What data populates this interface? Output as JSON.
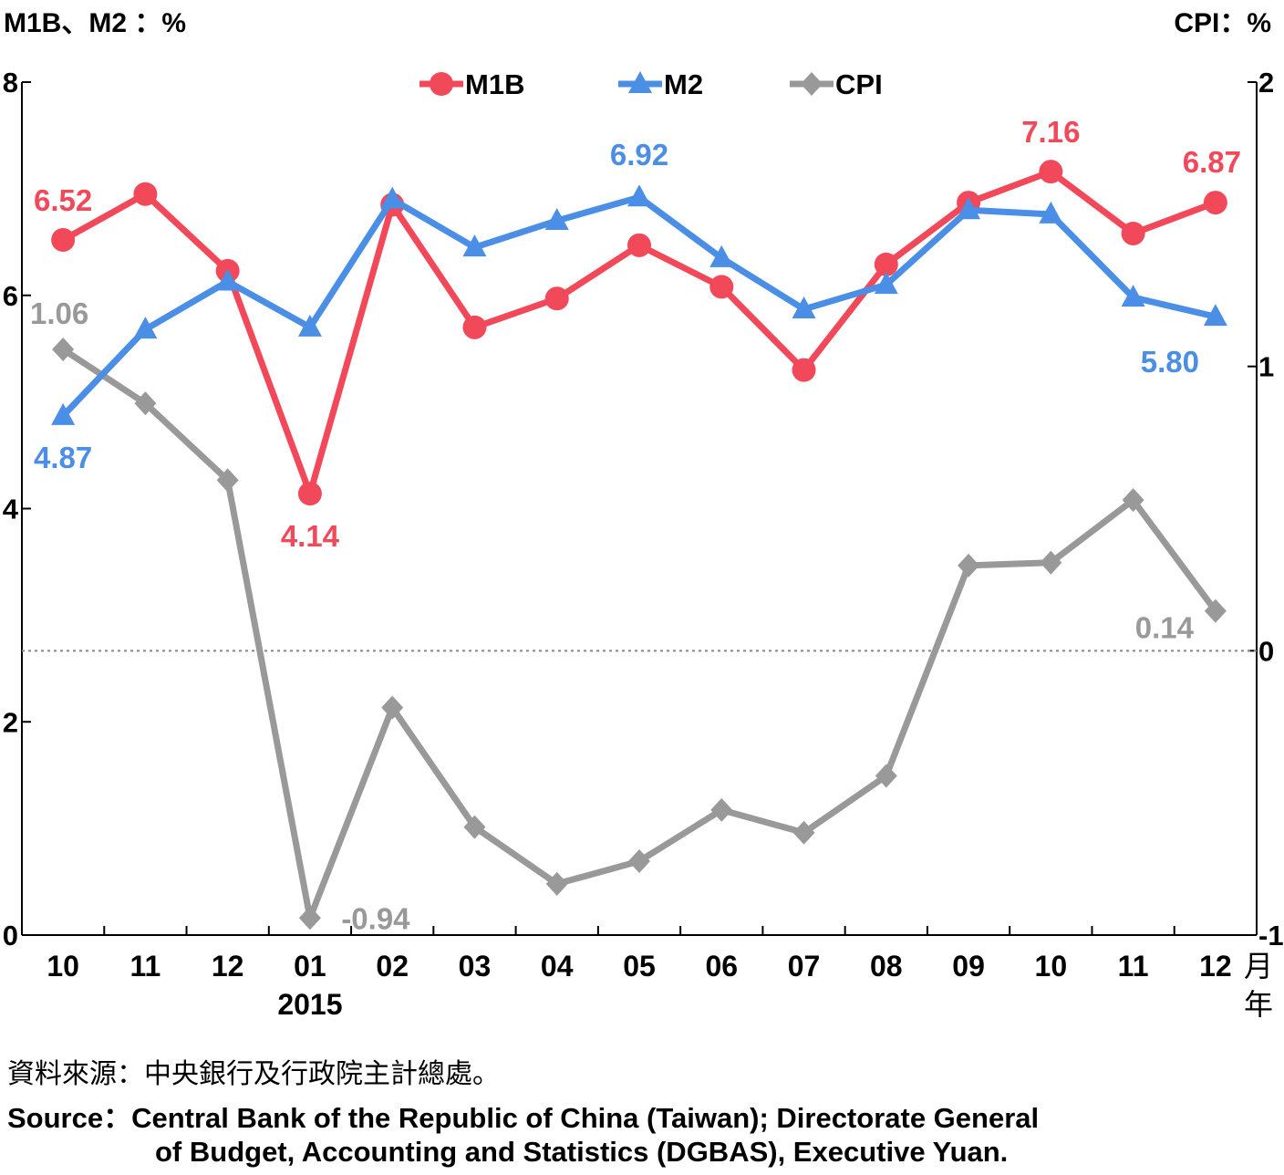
{
  "left_axis_title": "M1B、M2 ：%",
  "right_axis_title": "CPI：%",
  "year_label": "2015",
  "month_unit": "月",
  "year_unit": "年",
  "source_zh": "資料來源：中央銀行及行政院主計總處。",
  "source_en_line1": "Source：Central Bank of the Republic of China (Taiwan); Directorate General",
  "source_en_line2": "of Budget, Accounting and Statistics (DGBAS), Executive Yuan.",
  "colors": {
    "m1b": "#f2495a",
    "m2": "#4a8ee6",
    "cpi": "#999999",
    "axis": "#000000"
  },
  "chart_data": {
    "type": "line",
    "categories": [
      "10",
      "11",
      "12",
      "01",
      "02",
      "03",
      "04",
      "05",
      "06",
      "07",
      "08",
      "09",
      "10",
      "11",
      "12"
    ],
    "left_axis": {
      "ylim": [
        0,
        8
      ],
      "ticks": [
        "0",
        "2",
        "4",
        "6",
        "8"
      ]
    },
    "right_axis": {
      "ylim": [
        -1,
        2
      ],
      "ticks": [
        "-1",
        "0",
        "1",
        "2"
      ]
    },
    "zero_reference_line": true,
    "legend": {
      "placement": "top-center"
    },
    "series": [
      {
        "name": "M1B",
        "axis": "left",
        "color": "#f2495a",
        "marker": "circle",
        "values": [
          6.52,
          6.95,
          6.23,
          4.14,
          6.85,
          5.7,
          5.97,
          6.47,
          6.08,
          5.3,
          6.29,
          6.87,
          7.16,
          6.58,
          6.87
        ],
        "labels": [
          {
            "index": 0,
            "text": "6.52"
          },
          {
            "index": 3,
            "text": "4.14"
          },
          {
            "index": 12,
            "text": "7.16"
          },
          {
            "index": 14,
            "text": "6.87"
          }
        ]
      },
      {
        "name": "M2",
        "axis": "left",
        "color": "#4a8ee6",
        "marker": "triangle",
        "values": [
          4.87,
          5.68,
          6.13,
          5.7,
          6.9,
          6.45,
          6.7,
          6.92,
          6.35,
          5.87,
          6.1,
          6.8,
          6.76,
          5.98,
          5.8
        ],
        "labels": [
          {
            "index": 0,
            "text": "4.87"
          },
          {
            "index": 7,
            "text": "6.92"
          },
          {
            "index": 14,
            "text": "5.80"
          }
        ]
      },
      {
        "name": "CPI",
        "axis": "right",
        "color": "#999999",
        "marker": "diamond",
        "values": [
          1.06,
          0.87,
          0.6,
          -0.94,
          -0.2,
          -0.62,
          -0.82,
          -0.74,
          -0.56,
          -0.64,
          -0.44,
          0.3,
          0.31,
          0.53,
          0.14
        ],
        "labels": [
          {
            "index": 0,
            "text": "1.06"
          },
          {
            "index": 3,
            "text": "-0.94"
          },
          {
            "index": 14,
            "text": "0.14"
          }
        ]
      }
    ]
  }
}
